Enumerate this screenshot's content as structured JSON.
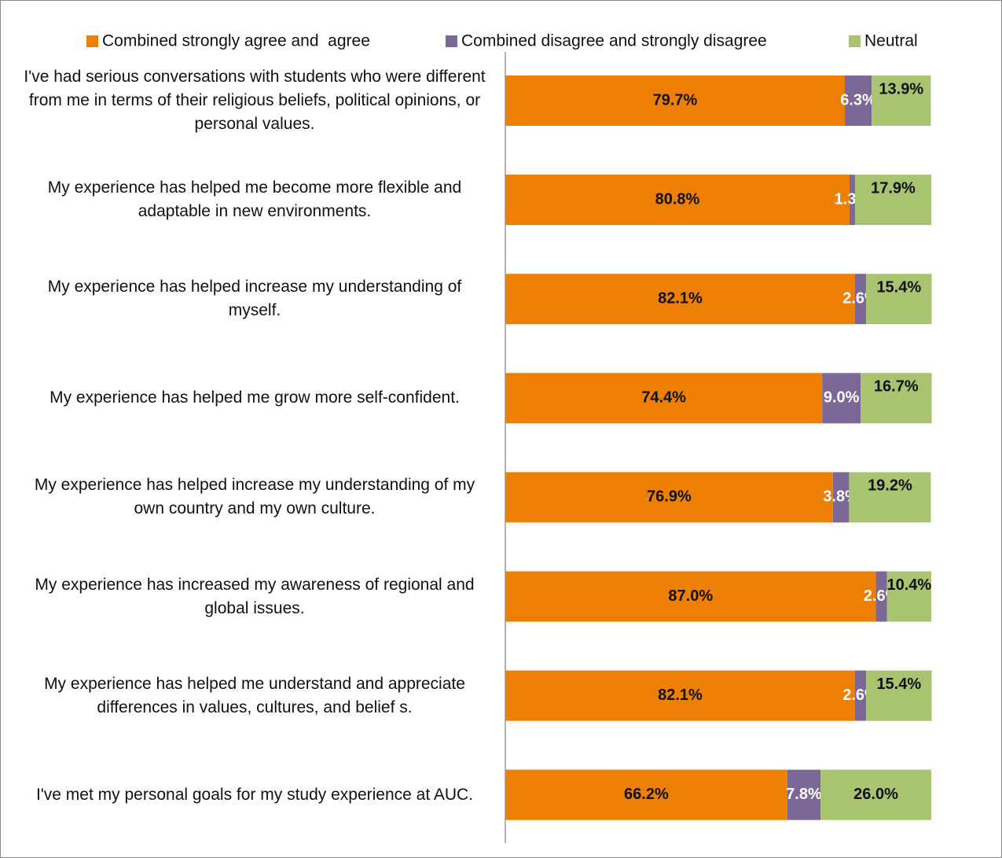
{
  "chart_data": {
    "type": "stacked-bar-horizontal",
    "categories": [
      "I've had serious conversations with students who were different from me in terms of their religious beliefs, political opinions, or personal values.",
      "My experience has helped me become more flexible and adaptable in new environments.",
      "My experience has helped increase my understanding of myself.",
      "My experience has helped me grow more self-confident.",
      "My experience has helped increase my understanding of my own country and my own culture.",
      "My experience has increased my awareness of regional and global issues.",
      "My experience has helped me understand and appreciate differences in values, cultures, and belief s.",
      "I've met my personal goals for my study experience at AUC."
    ],
    "series": [
      {
        "name": "Combined strongly agree and  agree",
        "color": "#ed7f04",
        "values": [
          79.7,
          80.8,
          82.1,
          74.4,
          76.9,
          87.0,
          82.1,
          66.2
        ],
        "value_labels": [
          "79.7%",
          "80.8%",
          "82.1%",
          "74.4%",
          "76.9%",
          "87.0%",
          "82.1%",
          "66.2%"
        ]
      },
      {
        "name": "Combined disagree and strongly disagree",
        "color": "#7b6896",
        "values": [
          6.3,
          1.3,
          2.6,
          9.0,
          3.8,
          2.6,
          2.6,
          7.8
        ],
        "value_labels": [
          "6.3%",
          "1.3%",
          "2.6%",
          "9.0%",
          "3.8%",
          "2.6%",
          "2.6%",
          "7.8%"
        ]
      },
      {
        "name": "Neutral",
        "color": "#a9c470",
        "values": [
          13.9,
          17.9,
          15.4,
          16.7,
          19.2,
          10.4,
          15.4,
          26.0
        ],
        "value_labels": [
          "13.9%",
          "17.9%",
          "15.4%",
          "16.7%",
          "19.2%",
          "10.4%",
          "15.4%",
          "26.0%"
        ]
      }
    ],
    "legend": "top"
  }
}
